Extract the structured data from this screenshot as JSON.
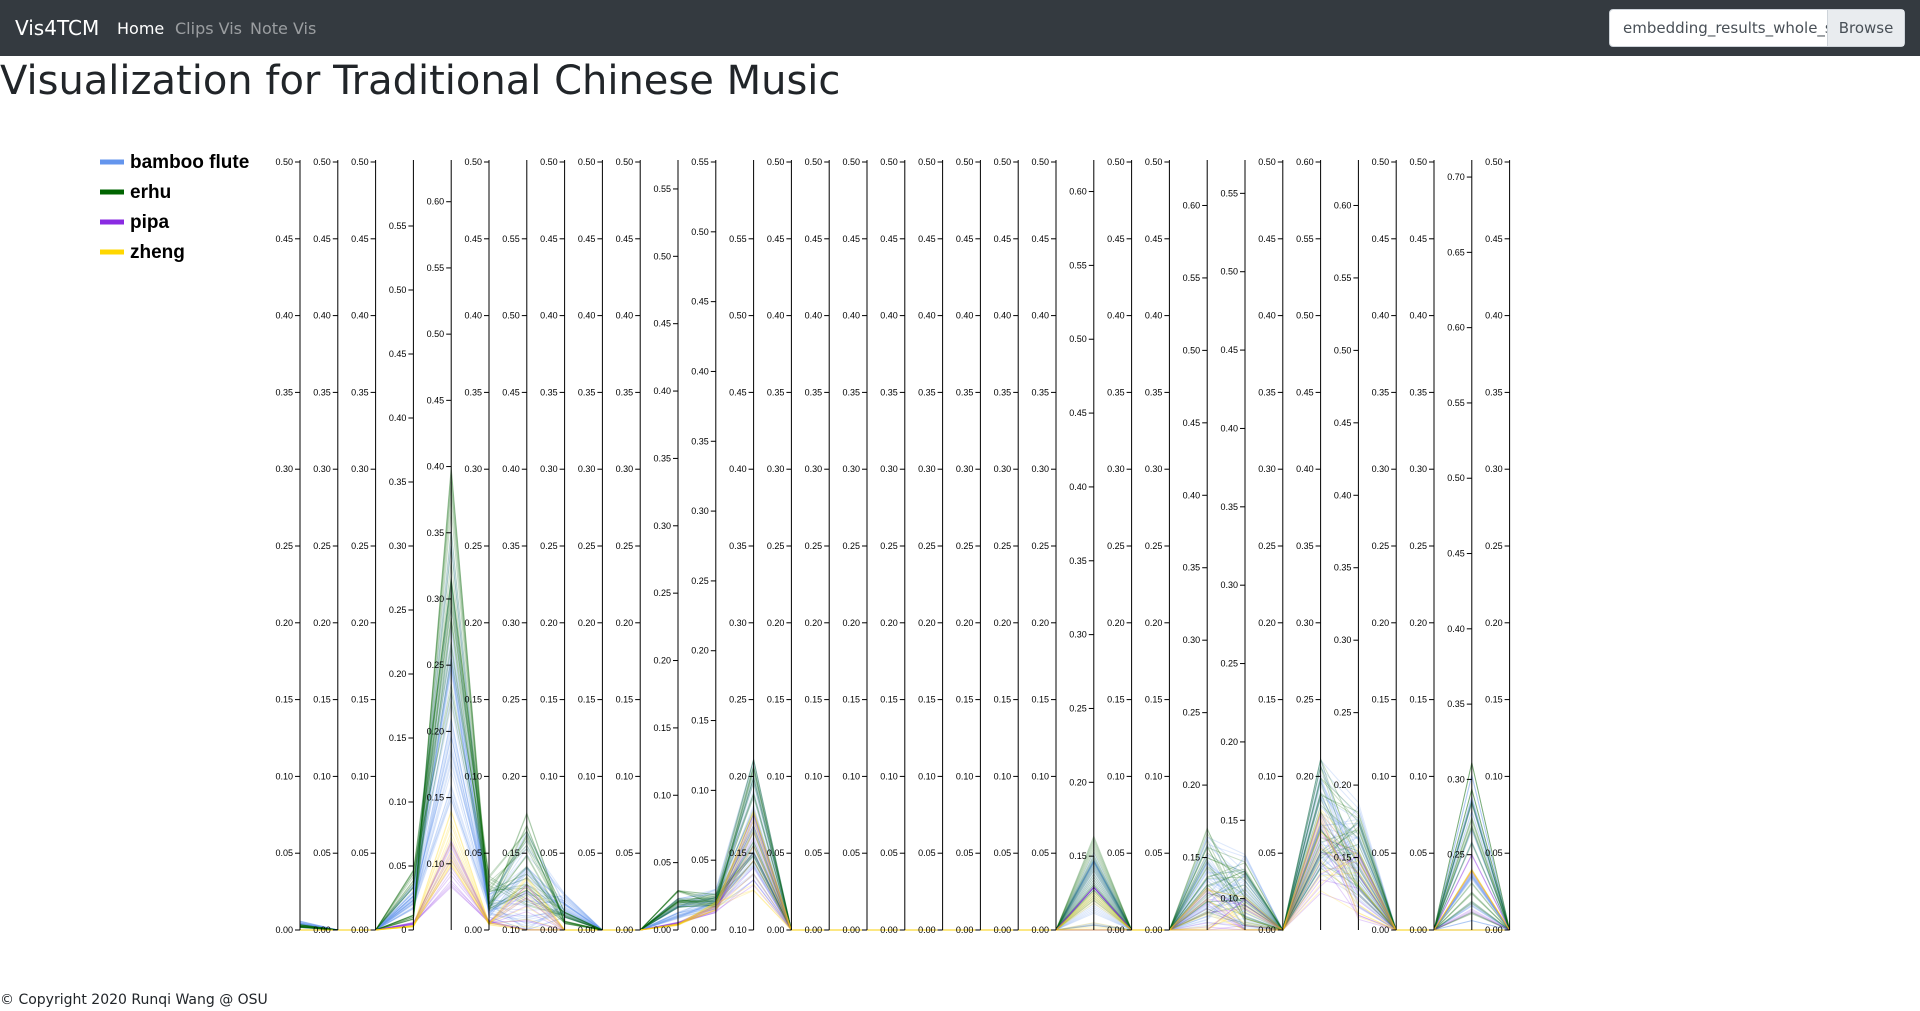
{
  "navbar": {
    "brand": "Vis4TCM",
    "links": [
      {
        "label": "Home",
        "active": true
      },
      {
        "label": "Clips Vis",
        "active": false
      },
      {
        "label": "Note Vis",
        "active": false
      }
    ],
    "file_input": {
      "value": "embedding_results_whole_sp",
      "button_label": "Browse"
    }
  },
  "page": {
    "title": "Visualization for Traditional Chinese Music",
    "footer": "© Copyright 2020 Runqi Wang @ OSU"
  },
  "chart_data": {
    "type": "parallel-coordinates",
    "legend": [
      {
        "name": "bamboo flute",
        "color": "#6495ed"
      },
      {
        "name": "erhu",
        "color": "#006400"
      },
      {
        "name": "pipa",
        "color": "#8a2be2"
      },
      {
        "name": "zheng",
        "color": "#ffd700"
      }
    ],
    "axes": [
      {
        "min": 0,
        "max": 0.5,
        "labels": [
          "0.00",
          "0.05",
          "0.10",
          "0.15",
          "0.20",
          "0.25",
          "0.30",
          "0.35",
          "0.40",
          "0.45",
          "0.50"
        ]
      },
      {
        "min": 0,
        "max": 0.5,
        "labels": [
          "0.00",
          "0.05",
          "0.10",
          "0.15",
          "0.20",
          "0.25",
          "0.30",
          "0.35",
          "0.40",
          "0.45",
          "0.50"
        ]
      },
      {
        "min": 0,
        "max": 0.5,
        "labels": [
          "0.00",
          "0.05",
          "0.10",
          "0.15",
          "0.20",
          "0.25",
          "0.30",
          "0.35",
          "0.40",
          "0.45",
          "0.50"
        ]
      },
      {
        "min": 0,
        "max": 0.6,
        "labels": [
          "0",
          "0.05",
          "0.10",
          "0.15",
          "0.20",
          "0.25",
          "0.30",
          "0.35",
          "0.40",
          "0.45",
          "0.50",
          "0.55"
        ]
      },
      {
        "min": 0.05,
        "max": 0.63,
        "labels": [
          "0.10",
          "0.15",
          "0.20",
          "0.25",
          "0.30",
          "0.35",
          "0.40",
          "0.45",
          "0.50",
          "0.55",
          "0.60"
        ]
      },
      {
        "min": 0,
        "max": 0.5,
        "labels": [
          "0.00",
          "0.05",
          "0.10",
          "0.15",
          "0.20",
          "0.25",
          "0.30",
          "0.35",
          "0.40",
          "0.45",
          "0.50"
        ]
      },
      {
        "min": 0.1,
        "max": 0.6,
        "labels": [
          "0.10",
          "0.15",
          "0.20",
          "0.25",
          "0.30",
          "0.35",
          "0.40",
          "0.45",
          "0.50",
          "0.55"
        ]
      },
      {
        "min": 0,
        "max": 0.5,
        "labels": [
          "0.00",
          "0.05",
          "0.10",
          "0.15",
          "0.20",
          "0.25",
          "0.30",
          "0.35",
          "0.40",
          "0.45",
          "0.50"
        ]
      },
      {
        "min": 0,
        "max": 0.5,
        "labels": [
          "0.00",
          "0.05",
          "0.10",
          "0.15",
          "0.20",
          "0.25",
          "0.30",
          "0.35",
          "0.40",
          "0.45",
          "0.50"
        ]
      },
      {
        "min": 0,
        "max": 0.5,
        "labels": [
          "0.00",
          "0.05",
          "0.10",
          "0.15",
          "0.20",
          "0.25",
          "0.30",
          "0.35",
          "0.40",
          "0.45",
          "0.50"
        ]
      },
      {
        "min": 0,
        "max": 0.57,
        "labels": [
          "0.00",
          "0.05",
          "0.10",
          "0.15",
          "0.20",
          "0.25",
          "0.30",
          "0.35",
          "0.40",
          "0.45",
          "0.50",
          "0.55"
        ]
      },
      {
        "min": 0,
        "max": 0.55,
        "labels": [
          "0.00",
          "0.05",
          "0.10",
          "0.15",
          "0.20",
          "0.25",
          "0.30",
          "0.35",
          "0.40",
          "0.45",
          "0.50",
          "0.55"
        ]
      },
      {
        "min": 0.1,
        "max": 0.6,
        "labels": [
          "0.10",
          "0.15",
          "0.20",
          "0.25",
          "0.30",
          "0.35",
          "0.40",
          "0.45",
          "0.50",
          "0.55"
        ]
      },
      {
        "min": 0,
        "max": 0.5,
        "labels": [
          "0.00",
          "0.05",
          "0.10",
          "0.15",
          "0.20",
          "0.25",
          "0.30",
          "0.35",
          "0.40",
          "0.45",
          "0.50"
        ]
      },
      {
        "min": 0,
        "max": 0.5,
        "labels": [
          "0.00",
          "0.05",
          "0.10",
          "0.15",
          "0.20",
          "0.25",
          "0.30",
          "0.35",
          "0.40",
          "0.45",
          "0.50"
        ]
      },
      {
        "min": 0,
        "max": 0.5,
        "labels": [
          "0.00",
          "0.05",
          "0.10",
          "0.15",
          "0.20",
          "0.25",
          "0.30",
          "0.35",
          "0.40",
          "0.45",
          "0.50"
        ]
      },
      {
        "min": 0,
        "max": 0.5,
        "labels": [
          "0.00",
          "0.05",
          "0.10",
          "0.15",
          "0.20",
          "0.25",
          "0.30",
          "0.35",
          "0.40",
          "0.45",
          "0.50"
        ]
      },
      {
        "min": 0,
        "max": 0.5,
        "labels": [
          "0.00",
          "0.05",
          "0.10",
          "0.15",
          "0.20",
          "0.25",
          "0.30",
          "0.35",
          "0.40",
          "0.45",
          "0.50"
        ]
      },
      {
        "min": 0,
        "max": 0.5,
        "labels": [
          "0.00",
          "0.05",
          "0.10",
          "0.15",
          "0.20",
          "0.25",
          "0.30",
          "0.35",
          "0.40",
          "0.45",
          "0.50"
        ]
      },
      {
        "min": 0,
        "max": 0.5,
        "labels": [
          "0.00",
          "0.05",
          "0.10",
          "0.15",
          "0.20",
          "0.25",
          "0.30",
          "0.35",
          "0.40",
          "0.45",
          "0.50"
        ]
      },
      {
        "min": 0,
        "max": 0.5,
        "labels": [
          "0.00",
          "0.05",
          "0.10",
          "0.15",
          "0.20",
          "0.25",
          "0.30",
          "0.35",
          "0.40",
          "0.45",
          "0.50"
        ]
      },
      {
        "min": 0.1,
        "max": 0.62,
        "labels": [
          "0.15",
          "0.20",
          "0.25",
          "0.30",
          "0.35",
          "0.40",
          "0.45",
          "0.50",
          "0.55",
          "0.60"
        ]
      },
      {
        "min": 0,
        "max": 0.5,
        "labels": [
          "0.00",
          "0.05",
          "0.10",
          "0.15",
          "0.20",
          "0.25",
          "0.30",
          "0.35",
          "0.40",
          "0.45",
          "0.50"
        ]
      },
      {
        "min": 0,
        "max": 0.5,
        "labels": [
          "0.00",
          "0.05",
          "0.10",
          "0.15",
          "0.20",
          "0.25",
          "0.30",
          "0.35",
          "0.40",
          "0.45",
          "0.50"
        ]
      },
      {
        "min": 0.1,
        "max": 0.63,
        "labels": [
          "0.15",
          "0.20",
          "0.25",
          "0.30",
          "0.35",
          "0.40",
          "0.45",
          "0.50",
          "0.55",
          "0.60"
        ]
      },
      {
        "min": 0.08,
        "max": 0.57,
        "labels": [
          "0.10",
          "0.15",
          "0.20",
          "0.25",
          "0.30",
          "0.35",
          "0.40",
          "0.45",
          "0.50",
          "0.55"
        ]
      },
      {
        "min": 0,
        "max": 0.5,
        "labels": [
          "0.00",
          "0.05",
          "0.10",
          "0.15",
          "0.20",
          "0.25",
          "0.30",
          "0.35",
          "0.40",
          "0.45",
          "0.50"
        ]
      },
      {
        "min": 0.1,
        "max": 0.6,
        "labels": [
          "0.20",
          "0.25",
          "0.30",
          "0.35",
          "0.40",
          "0.45",
          "0.50",
          "0.55",
          "0.60"
        ]
      },
      {
        "min": 0.1,
        "max": 0.63,
        "labels": [
          "0.15",
          "0.20",
          "0.25",
          "0.30",
          "0.35",
          "0.40",
          "0.45",
          "0.50",
          "0.55",
          "0.60"
        ]
      },
      {
        "min": 0,
        "max": 0.5,
        "labels": [
          "0.00",
          "0.05",
          "0.10",
          "0.15",
          "0.20",
          "0.25",
          "0.30",
          "0.35",
          "0.40",
          "0.45",
          "0.50"
        ]
      },
      {
        "min": 0,
        "max": 0.5,
        "labels": [
          "0.00",
          "0.05",
          "0.10",
          "0.15",
          "0.20",
          "0.25",
          "0.30",
          "0.35",
          "0.40",
          "0.45",
          "0.50"
        ]
      },
      {
        "min": 0.2,
        "max": 0.71,
        "labels": [
          "0.25",
          "0.30",
          "0.35",
          "0.40",
          "0.45",
          "0.50",
          "0.55",
          "0.60",
          "0.65",
          "0.70"
        ]
      },
      {
        "min": 0,
        "max": 0.5,
        "labels": [
          "0.00",
          "0.05",
          "0.10",
          "0.15",
          "0.20",
          "0.25",
          "0.30",
          "0.35",
          "0.40",
          "0.45",
          "0.50"
        ]
      }
    ],
    "series": [
      {
        "name": "bamboo flute",
        "values": [
          0.005,
          0,
          0,
          0.03,
          0.3,
          0.01,
          0.12,
          0.01,
          0,
          0,
          0.02,
          0.025,
          0.18,
          0,
          0,
          0,
          0,
          0,
          0,
          0,
          0,
          0.14,
          0,
          0,
          0.14,
          0.11,
          0,
          0.18,
          0.16,
          0,
          0,
          0.26,
          0
        ]
      },
      {
        "name": "bamboo flute",
        "values": [
          0.004,
          0,
          0,
          0.02,
          0.18,
          0.015,
          0.12,
          0.015,
          0,
          0,
          0.015,
          0.02,
          0.17,
          0,
          0,
          0,
          0,
          0,
          0,
          0,
          0,
          0.13,
          0,
          0,
          0.13,
          0.1,
          0,
          0.17,
          0.15,
          0,
          0,
          0.25,
          0
        ]
      },
      {
        "name": "bamboo flute",
        "values": [
          0.002,
          0,
          0,
          0.025,
          0.22,
          0.02,
          0.14,
          0.02,
          0,
          0,
          0.01,
          0.018,
          0.16,
          0,
          0,
          0,
          0,
          0,
          0,
          0,
          0,
          0.125,
          0,
          0,
          0.125,
          0.095,
          0,
          0.165,
          0.14,
          0,
          0,
          0.24,
          0
        ]
      },
      {
        "name": "erhu",
        "values": [
          0.003,
          0,
          0,
          0.04,
          0.27,
          0.03,
          0.14,
          0.01,
          0,
          0,
          0.02,
          0.02,
          0.175,
          0,
          0,
          0,
          0,
          0,
          0,
          0,
          0,
          0.135,
          0,
          0,
          0.135,
          0.1,
          0,
          0.17,
          0.15,
          0,
          0,
          0.25,
          0
        ]
      },
      {
        "name": "erhu",
        "values": [
          0.002,
          0,
          0,
          0.01,
          0.34,
          0.015,
          0.15,
          0.005,
          0,
          0,
          0.025,
          0.022,
          0.18,
          0,
          0,
          0,
          0,
          0,
          0,
          0,
          0,
          0.145,
          0,
          0,
          0.145,
          0.105,
          0,
          0.18,
          0.155,
          0,
          0,
          0.265,
          0
        ]
      },
      {
        "name": "pipa",
        "values": [
          0,
          0,
          0,
          0.005,
          0.1,
          0.005,
          0.11,
          0,
          0,
          0,
          0.005,
          0.015,
          0.15,
          0,
          0,
          0,
          0,
          0,
          0,
          0,
          0,
          0.11,
          0,
          0,
          0.11,
          0.085,
          0,
          0.15,
          0.13,
          0,
          0,
          0.215,
          0
        ]
      },
      {
        "name": "zheng",
        "values": [
          0,
          0,
          0,
          0.003,
          0.12,
          0.004,
          0.115,
          0,
          0,
          0,
          0.004,
          0.017,
          0.152,
          0,
          0,
          0,
          0,
          0,
          0,
          0,
          0,
          0.112,
          0,
          0,
          0.11,
          0.086,
          0,
          0.152,
          0.132,
          0,
          0,
          0.21,
          0
        ]
      }
    ]
  }
}
